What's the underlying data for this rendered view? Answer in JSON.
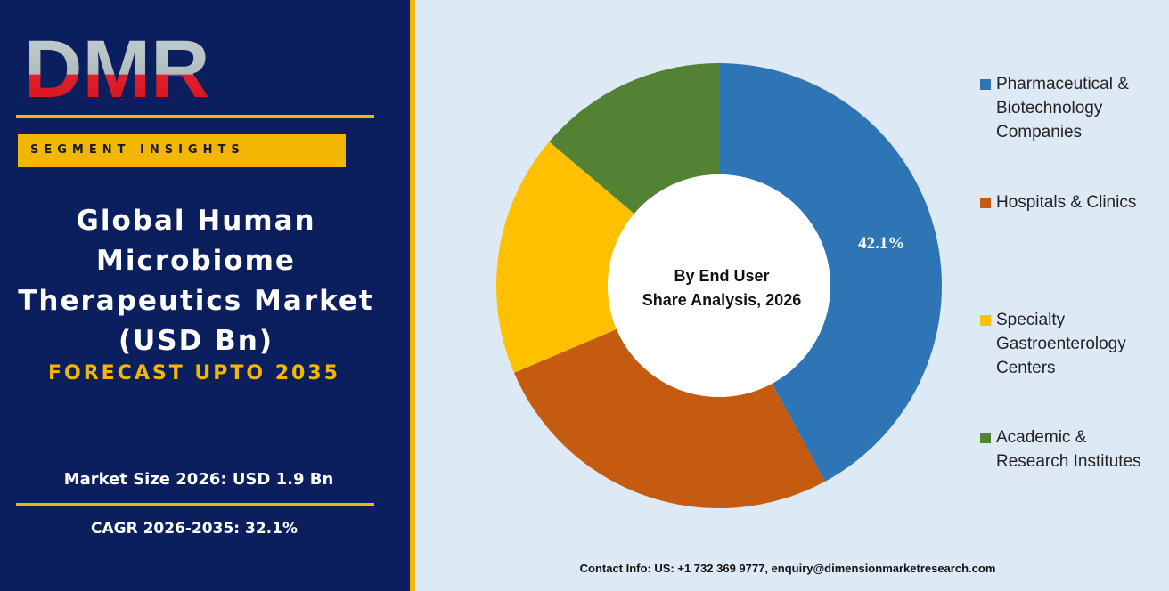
{
  "logo": "DMR",
  "badge": "SEGMENT INSIGHTS",
  "headline": "Global Human Microbiome Therapeutics Market (USD Bn)",
  "forecast": "FORECAST UPTO 2035",
  "market_size": "Market Size 2026: USD 1.9 Bn",
  "cagr": "CAGR 2026-2035: 32.1%",
  "contact": "Contact Info: US: +1 732 369 9777, enquiry@dimensionmarketresearch.com",
  "chart_data": {
    "type": "donut",
    "center_text": [
      "By End User",
      "Share Analysis, 2026"
    ],
    "categories": [
      "Pharmaceutical & Biotechnology Companies",
      "Hospitals & Clinics",
      "Specialty Gastroenterology Centers",
      "Academic & Research Institutes"
    ],
    "values": [
      42.1,
      26.5,
      17.6,
      13.8
    ],
    "value_labels": [
      "42.1%",
      null,
      null,
      null
    ],
    "colors": [
      "#2e75b6",
      "#c55a11",
      "#ffc000",
      "#548235"
    ],
    "legend": "right"
  }
}
